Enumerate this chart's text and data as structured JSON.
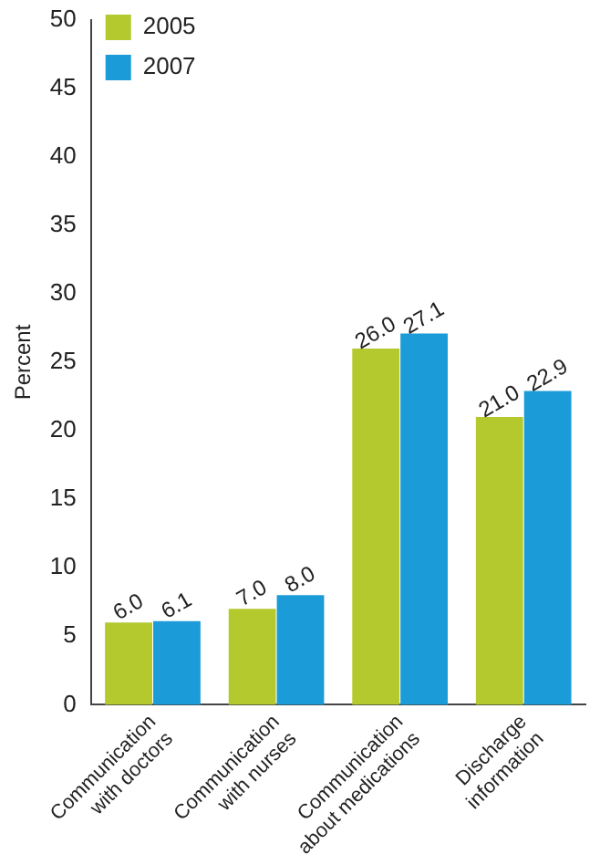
{
  "chart_data": {
    "type": "bar",
    "ylabel": "Percent",
    "categories": [
      "Communication with doctors",
      "Communication with nurses",
      "Communication about medications",
      "Discharge information"
    ],
    "series": [
      {
        "name": "2005",
        "color": "#b3c92d",
        "values": [
          6.0,
          7.0,
          26.0,
          21.0
        ],
        "value_labels": [
          "6.0",
          "7.0",
          "26.0",
          "21.0"
        ]
      },
      {
        "name": "2007",
        "color": "#1b9bd7",
        "values": [
          6.1,
          8.0,
          27.1,
          22.9
        ],
        "value_labels": [
          "6.1",
          "8.0",
          "27.1",
          "22.9"
        ]
      }
    ],
    "ylim": [
      0,
      50
    ],
    "yticks": [
      0,
      5,
      10,
      15,
      20,
      25,
      30,
      35,
      40,
      45,
      50
    ],
    "grid": false,
    "legend": "top left"
  }
}
